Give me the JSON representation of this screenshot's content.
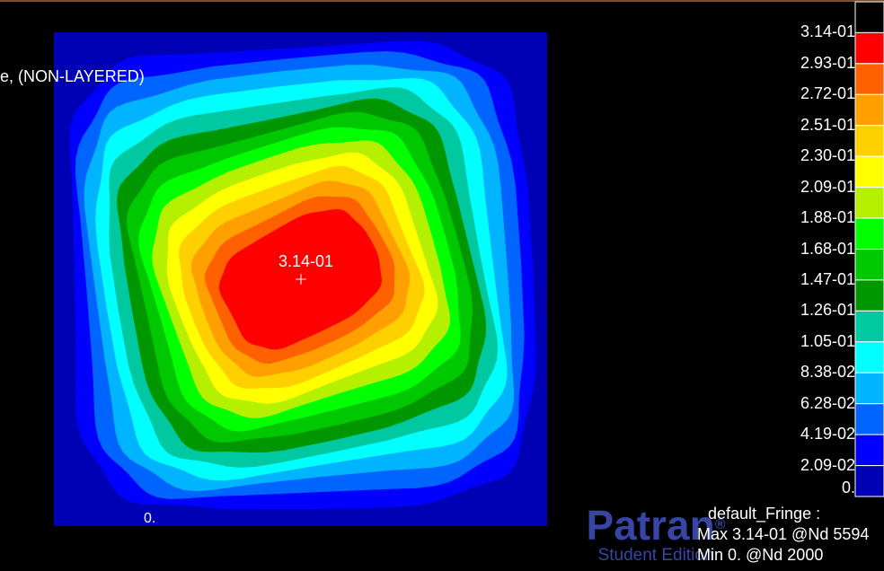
{
  "viewport": {
    "title": "e, (NON-LAYERED)",
    "max_marker_label": "3.14-01",
    "min_marker_label": "0."
  },
  "legend": {
    "levels": [
      {
        "label": "3.14-01",
        "color": "#ff0000"
      },
      {
        "label": "2.93-01",
        "color": "#ff6000"
      },
      {
        "label": "2.72-01",
        "color": "#ffa000"
      },
      {
        "label": "2.51-01",
        "color": "#ffd000"
      },
      {
        "label": "2.30-01",
        "color": "#ffff00"
      },
      {
        "label": "2.09-01",
        "color": "#b4f000"
      },
      {
        "label": "1.88-01",
        "color": "#00ff00"
      },
      {
        "label": "1.68-01",
        "color": "#00c800"
      },
      {
        "label": "1.47-01",
        "color": "#009600"
      },
      {
        "label": "1.26-01",
        "color": "#00c8a0"
      },
      {
        "label": "1.05-01",
        "color": "#00ffff"
      },
      {
        "label": "8.38-02",
        "color": "#00b4ff"
      },
      {
        "label": "6.28-02",
        "color": "#0064ff"
      },
      {
        "label": "4.19-02",
        "color": "#0000ff"
      },
      {
        "label": "2.09-02",
        "color": "#0000b4"
      },
      {
        "label": "0.",
        "color": ""
      }
    ],
    "top_swatch_color": "#000000"
  },
  "fringe_info": {
    "title": "default_Fringe :",
    "max": "Max 3.14-01 @Nd 5594",
    "min": "Min  0. @Nd 2000"
  },
  "watermark": {
    "brand": "Patran",
    "registered_mark": "®",
    "edition": "Student Edition"
  }
}
